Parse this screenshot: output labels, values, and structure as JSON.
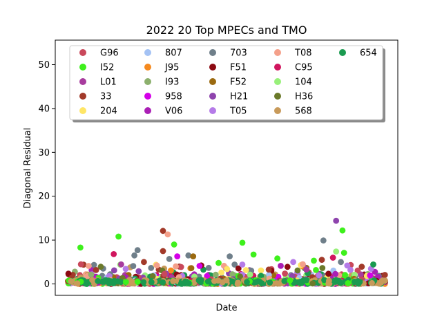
{
  "chart_data": {
    "type": "scatter",
    "title": "2022 20 Top MPECs and TMO",
    "xlabel": "Date",
    "ylabel": "Diagonal Residual",
    "x_ticks_shown": false,
    "ylim": [
      -2.6,
      55.6
    ],
    "yticks": [
      0,
      10,
      20,
      30,
      40,
      50
    ],
    "xlim": [
      0,
      100
    ],
    "grid": false,
    "legend": {
      "placement": "top",
      "columns": 5,
      "shadow": true
    },
    "series": [
      {
        "name": "G96",
        "color": "#c9485b"
      },
      {
        "name": "I52",
        "color": "#3ef01c"
      },
      {
        "name": "L01",
        "color": "#a83c9e"
      },
      {
        "name": "33",
        "color": "#a23a2a"
      },
      {
        "name": "204",
        "color": "#ffe666"
      },
      {
        "name": "807",
        "color": "#a4c2f4"
      },
      {
        "name": "J95",
        "color": "#f58a1f"
      },
      {
        "name": "I93",
        "color": "#8cb06d"
      },
      {
        "name": "958",
        "color": "#d400e8"
      },
      {
        "name": "V06",
        "color": "#aa1fb5"
      },
      {
        "name": "703",
        "color": "#6f7f8a"
      },
      {
        "name": "F51",
        "color": "#8c0a12"
      },
      {
        "name": "F52",
        "color": "#9b6a10"
      },
      {
        "name": "H21",
        "color": "#8e44ad"
      },
      {
        "name": "T05",
        "color": "#b57be8"
      },
      {
        "name": "T08",
        "color": "#f4a08a"
      },
      {
        "name": "C95",
        "color": "#d0155e"
      },
      {
        "name": "104",
        "color": "#98f07a"
      },
      {
        "name": "H36",
        "color": "#6b7a2a"
      },
      {
        "name": "568",
        "color": "#c89a5a"
      },
      {
        "name": "654",
        "color": "#1a9a50"
      }
    ],
    "outliers": [
      {
        "x": 4,
        "y": 8.3,
        "series": "I52"
      },
      {
        "x": 16,
        "y": 10.8,
        "series": "I52"
      },
      {
        "x": 14.5,
        "y": 6.8,
        "series": "C95"
      },
      {
        "x": 22,
        "y": 7.7,
        "series": "703"
      },
      {
        "x": 21,
        "y": 6.5,
        "series": "703"
      },
      {
        "x": 24,
        "y": 5.0,
        "series": "33"
      },
      {
        "x": 30,
        "y": 12.1,
        "series": "33"
      },
      {
        "x": 31.5,
        "y": 11.3,
        "series": "T08"
      },
      {
        "x": 30,
        "y": 7.5,
        "series": "33"
      },
      {
        "x": 33.5,
        "y": 9.0,
        "series": "I52"
      },
      {
        "x": 32,
        "y": 5.7,
        "series": "703"
      },
      {
        "x": 34.5,
        "y": 6.3,
        "series": "958"
      },
      {
        "x": 38,
        "y": 6.5,
        "series": "703"
      },
      {
        "x": 39.5,
        "y": 6.3,
        "series": "F52"
      },
      {
        "x": 41.5,
        "y": 4.1,
        "series": "958"
      },
      {
        "x": 47.5,
        "y": 4.8,
        "series": "I52"
      },
      {
        "x": 51,
        "y": 6.3,
        "series": "703"
      },
      {
        "x": 55,
        "y": 9.4,
        "series": "I52"
      },
      {
        "x": 58.5,
        "y": 6.7,
        "series": "I52"
      },
      {
        "x": 66,
        "y": 5.8,
        "series": "I52"
      },
      {
        "x": 71,
        "y": 5.0,
        "series": "T05"
      },
      {
        "x": 74,
        "y": 4.5,
        "series": "T08"
      },
      {
        "x": 77.5,
        "y": 5.3,
        "series": "I52"
      },
      {
        "x": 80,
        "y": 5.5,
        "series": "33"
      },
      {
        "x": 80.5,
        "y": 9.9,
        "series": "703"
      },
      {
        "x": 83.5,
        "y": 6.0,
        "series": "C95"
      },
      {
        "x": 84.5,
        "y": 7.4,
        "series": "104"
      },
      {
        "x": 84.5,
        "y": 14.4,
        "series": "H21"
      },
      {
        "x": 86.5,
        "y": 12.2,
        "series": "I52"
      },
      {
        "x": 87,
        "y": 7.1,
        "series": "I52"
      },
      {
        "x": 86,
        "y": 5.0,
        "series": "703"
      },
      {
        "x": 88,
        "y": 4.2,
        "series": "T05"
      },
      {
        "x": 89,
        "y": 3.2,
        "series": "T05"
      }
    ]
  }
}
